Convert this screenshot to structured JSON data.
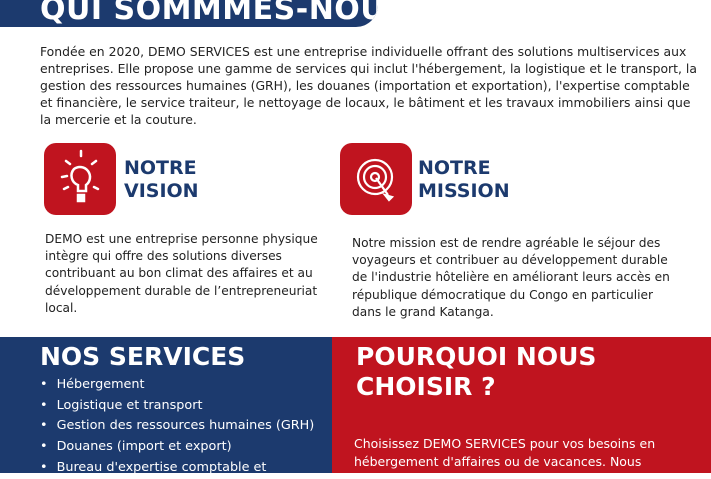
{
  "header": {
    "title": "QUI SOMMMES-NOUS?"
  },
  "intro": "Fondée en 2020, DEMO SERVICES est une entreprise individuelle offrant des solutions multiservices aux entreprises. Elle propose une gamme de services qui inclut l'hébergement, la logistique et le transport, la gestion des ressources humaines (GRH), les douanes (importation et exportation), l'expertise comptable et financière, le service traiteur, le nettoyage de locaux, le bâtiment et les travaux immobiliers ainsi que la mercerie et la couture.",
  "vision": {
    "title_line1": "NOTRE",
    "title_line2": "VISION",
    "icon": "lightbulb-icon",
    "text": "DEMO est une entreprise personne physique intègre qui offre des solutions diverses contribuant au bon climat des affaires et au développement durable de l’entrepreneuriat local."
  },
  "mission": {
    "title_line1": "NOTRE",
    "title_line2": "MISSION",
    "icon": "target-icon",
    "text": "Notre mission est de rendre agréable le séjour des voyageurs et contribuer au développement durable de l'industrie hôtelière en améliorant leurs accès en république démocratique du Congo en particulier dans le grand Katanga."
  },
  "services": {
    "title": "NOS SERVICES",
    "items": [
      "Hébergement",
      "Logistique et transport",
      "Gestion des ressources humaines (GRH)",
      "Douanes (import et export)",
      "Bureau d'expertise comptable et"
    ]
  },
  "why": {
    "title": "POURQUOI NOUS CHOISIR ?",
    "text": "Choisissez DEMO SERVICES pour vos besoins en hébergement d'affaires ou de vacances. Nous"
  },
  "colors": {
    "blue": "#1c3a6e",
    "red": "#c0141f"
  }
}
